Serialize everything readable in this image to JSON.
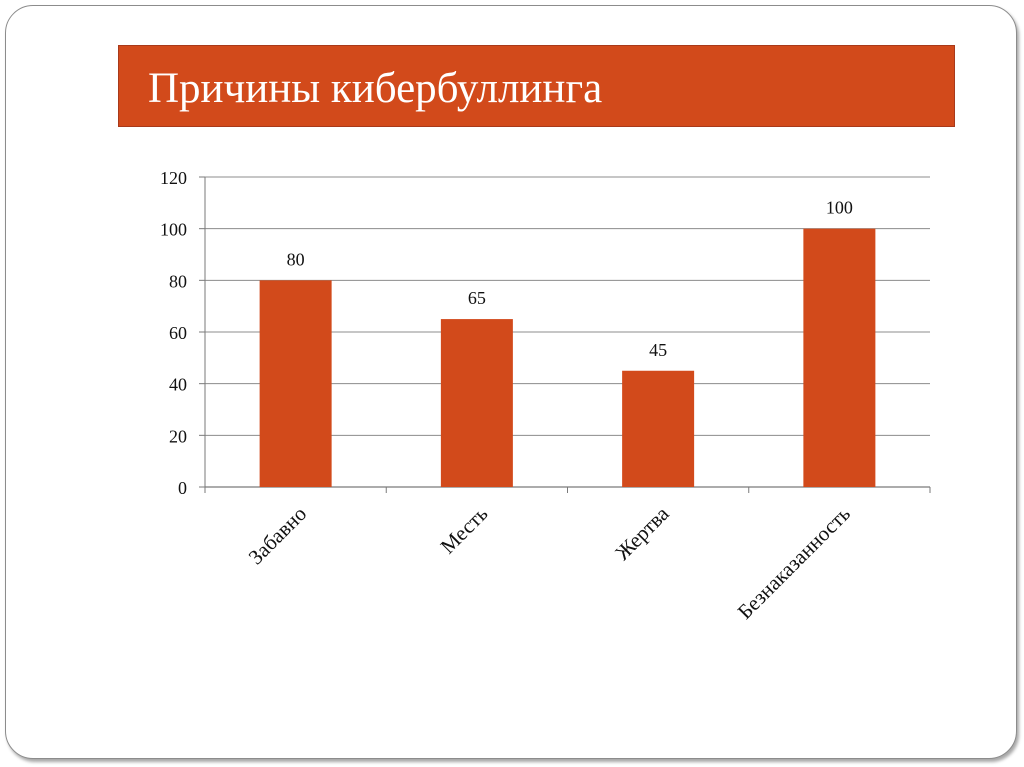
{
  "slide": {
    "title": "Причины кибербуллинга"
  },
  "colors": {
    "accent": "#d24a1b",
    "bar": "#d24a1b",
    "gridline": "#8c8c8c",
    "slide_border": "#8c8c8c"
  },
  "chart_data": {
    "type": "bar",
    "categories": [
      "Забавно",
      "Месть",
      "Жертва",
      "Безнаказанность"
    ],
    "values": [
      80,
      65,
      45,
      100
    ],
    "data_labels": [
      "80",
      "65",
      "45",
      "100"
    ],
    "ylim": [
      0,
      120
    ],
    "yticks": [
      "0",
      "20",
      "40",
      "60",
      "80",
      "100",
      "120"
    ],
    "xlabel": "",
    "ylabel": "",
    "grid": true,
    "legend": "none",
    "x_tick_rotation": "diagonal"
  }
}
